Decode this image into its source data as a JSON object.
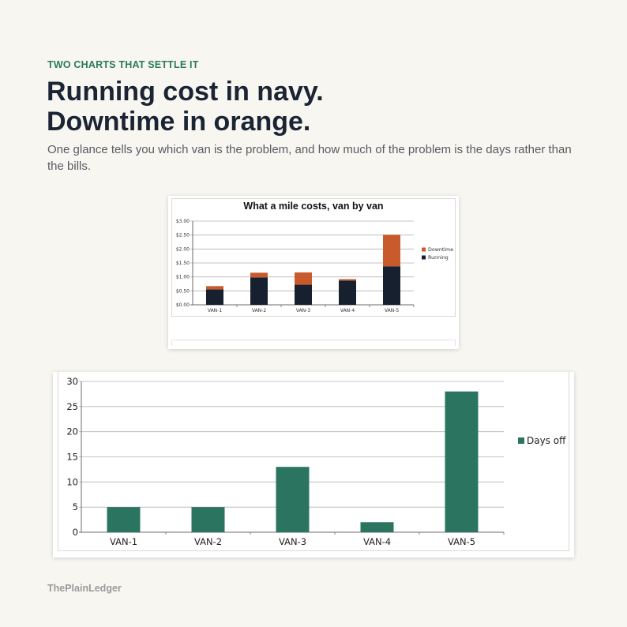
{
  "header": {
    "eyebrow": "TWO CHARTS THAT SETTLE IT",
    "headline_line1": "Running cost in navy.",
    "headline_line2": "Downtime in orange.",
    "subhead": "One glance tells you which van is the problem, and how much of the problem is the days rather than the bills."
  },
  "footer": {
    "brand": "ThePlainLedger"
  },
  "colors": {
    "navy": "#16202f",
    "orange": "#c85a2c",
    "green": "#2b7560",
    "background": "#f8f6f1"
  },
  "chart_data": [
    {
      "type": "bar",
      "stacked": true,
      "title": "What a mile costs, van by van",
      "categories": [
        "VAN-1",
        "VAN-2",
        "VAN-3",
        "VAN-4",
        "VAN-5"
      ],
      "series": [
        {
          "name": "Running",
          "color": "#16202f",
          "values": [
            0.55,
            0.98,
            0.72,
            0.87,
            1.38
          ]
        },
        {
          "name": "Downtime",
          "color": "#c85a2c",
          "values": [
            0.12,
            0.17,
            0.44,
            0.05,
            1.13
          ]
        }
      ],
      "ylim": [
        0,
        3
      ],
      "yticks": [
        0,
        0.5,
        1,
        1.5,
        2,
        2.5,
        3
      ],
      "ytick_labels": [
        "$0.00",
        "$0.50",
        "$1.00",
        "$1.50",
        "$2.00",
        "$2.50",
        "$3.00"
      ],
      "legend": "right",
      "grid": true
    },
    {
      "type": "bar",
      "title": "",
      "categories": [
        "VAN-1",
        "VAN-2",
        "VAN-3",
        "VAN-4",
        "VAN-5"
      ],
      "series": [
        {
          "name": "Days off",
          "color": "#2b7560",
          "values": [
            5,
            5,
            13,
            2,
            28
          ]
        }
      ],
      "ylim": [
        0,
        30
      ],
      "yticks": [
        0,
        5,
        10,
        15,
        20,
        25,
        30
      ],
      "ytick_labels": [
        "0",
        "5",
        "10",
        "15",
        "20",
        "25",
        "30"
      ],
      "legend": "right",
      "grid": true
    }
  ]
}
